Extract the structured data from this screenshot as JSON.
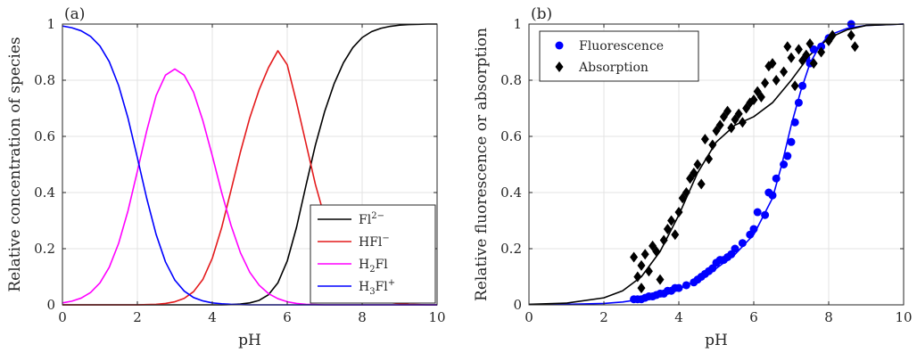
{
  "chart_data": [
    {
      "panel_label": "(a)",
      "type": "line",
      "xlabel": "pH",
      "ylabel": "Relative concentration of species",
      "xlim": [
        0,
        10
      ],
      "ylim": [
        0,
        1
      ],
      "xticks": [
        0,
        2,
        4,
        6,
        8,
        10
      ],
      "yticks": [
        0,
        0.2,
        0.4,
        0.6,
        0.8,
        1
      ],
      "grid": true,
      "legend_position": "bottom-right",
      "x": [
        0,
        0.25,
        0.5,
        0.75,
        1,
        1.25,
        1.5,
        1.75,
        2,
        2.25,
        2.5,
        2.75,
        3,
        3.25,
        3.5,
        3.75,
        4,
        4.25,
        4.5,
        4.75,
        5,
        5.25,
        5.5,
        5.75,
        6,
        6.25,
        6.5,
        6.75,
        7,
        7.25,
        7.5,
        7.75,
        8,
        8.25,
        8.5,
        8.75,
        9,
        9.25,
        9.5,
        9.75,
        10
      ],
      "series": [
        {
          "name": "Fl2-",
          "name_base": "Fl",
          "name_sup": "2−",
          "name_sub": "",
          "name_pre": "",
          "color": "#000000",
          "values": [
            0,
            0,
            0,
            0,
            0,
            0,
            0,
            0,
            0,
            0,
            0,
            0,
            0,
            0,
            0,
            0,
            0,
            0,
            0.001,
            0.003,
            0.007,
            0.016,
            0.036,
            0.078,
            0.156,
            0.277,
            0.425,
            0.568,
            0.689,
            0.787,
            0.862,
            0.916,
            0.952,
            0.973,
            0.985,
            0.992,
            0.996,
            0.998,
            0.999,
            1,
            1
          ]
        },
        {
          "name": "HFl-",
          "name_base": "HFl",
          "name_sup": "−",
          "name_sub": "",
          "name_pre": "",
          "color": "#e41a1c",
          "values": [
            0,
            0,
            0,
            0,
            0,
            0,
            0,
            0,
            0,
            0.001,
            0.002,
            0.005,
            0.011,
            0.023,
            0.047,
            0.091,
            0.166,
            0.275,
            0.408,
            0.544,
            0.666,
            0.766,
            0.845,
            0.905,
            0.855,
            0.72,
            0.575,
            0.43,
            0.311,
            0.213,
            0.138,
            0.084,
            0.048,
            0.027,
            0.015,
            0.008,
            0.004,
            0.002,
            0.001,
            0,
            0
          ]
        },
        {
          "name": "H2Fl",
          "name_base": "Fl",
          "name_pre": "H",
          "name_sub": "2",
          "name_sup": "",
          "color": "#ff00ff",
          "values": [
            0.007,
            0.013,
            0.024,
            0.044,
            0.078,
            0.134,
            0.219,
            0.335,
            0.476,
            0.62,
            0.745,
            0.818,
            0.84,
            0.818,
            0.757,
            0.655,
            0.531,
            0.4,
            0.283,
            0.186,
            0.116,
            0.07,
            0.04,
            0.022,
            0.011,
            0.005,
            0.002,
            0.001,
            0,
            0,
            0,
            0,
            0,
            0,
            0,
            0,
            0,
            0,
            0,
            0,
            0
          ]
        },
        {
          "name": "H3Fl+",
          "name_base": "Fl",
          "name_pre": "H",
          "name_sub": "3",
          "name_sup": "+",
          "color": "#0000ff",
          "values": [
            0.993,
            0.987,
            0.976,
            0.956,
            0.922,
            0.866,
            0.781,
            0.665,
            0.524,
            0.379,
            0.251,
            0.153,
            0.088,
            0.049,
            0.026,
            0.014,
            0.007,
            0.004,
            0.002,
            0.001,
            0,
            0,
            0,
            0,
            0,
            0,
            0,
            0,
            0,
            0,
            0,
            0,
            0,
            0,
            0,
            0,
            0,
            0,
            0,
            0,
            0
          ]
        }
      ]
    },
    {
      "panel_label": "(b)",
      "type": "scatter",
      "xlabel": "pH",
      "ylabel": "Relative fluorescence or absorption",
      "xlim": [
        0,
        10
      ],
      "ylim": [
        0,
        1
      ],
      "xticks": [
        0,
        2,
        4,
        6,
        8,
        10
      ],
      "yticks": [
        0,
        0.2,
        0.4,
        0.6,
        0.8,
        1
      ],
      "grid": true,
      "legend_position": "top-left",
      "series": [
        {
          "name": "Fluorescence",
          "marker": "circle",
          "color": "#0000ff",
          "points": [
            [
              2.8,
              0.02
            ],
            [
              2.9,
              0.02
            ],
            [
              3.0,
              0.02
            ],
            [
              3.1,
              0.025
            ],
            [
              3.2,
              0.03
            ],
            [
              3.3,
              0.03
            ],
            [
              3.4,
              0.035
            ],
            [
              3.5,
              0.04
            ],
            [
              3.6,
              0.04
            ],
            [
              3.7,
              0.05
            ],
            [
              3.8,
              0.05
            ],
            [
              3.9,
              0.06
            ],
            [
              4.0,
              0.06
            ],
            [
              4.2,
              0.07
            ],
            [
              4.4,
              0.08
            ],
            [
              4.5,
              0.09
            ],
            [
              4.6,
              0.1
            ],
            [
              4.7,
              0.11
            ],
            [
              4.8,
              0.12
            ],
            [
              4.9,
              0.13
            ],
            [
              5.0,
              0.15
            ],
            [
              5.1,
              0.16
            ],
            [
              5.2,
              0.16
            ],
            [
              5.3,
              0.17
            ],
            [
              5.4,
              0.18
            ],
            [
              5.5,
              0.2
            ],
            [
              5.7,
              0.22
            ],
            [
              5.9,
              0.25
            ],
            [
              6.0,
              0.27
            ],
            [
              6.1,
              0.33
            ],
            [
              6.3,
              0.32
            ],
            [
              6.4,
              0.4
            ],
            [
              6.5,
              0.39
            ],
            [
              6.6,
              0.45
            ],
            [
              6.8,
              0.5
            ],
            [
              6.9,
              0.53
            ],
            [
              7.0,
              0.58
            ],
            [
              7.1,
              0.65
            ],
            [
              7.2,
              0.72
            ],
            [
              7.3,
              0.78
            ],
            [
              7.4,
              0.88
            ],
            [
              7.5,
              0.86
            ],
            [
              7.6,
              0.91
            ],
            [
              7.8,
              0.92
            ],
            [
              8.0,
              0.95
            ],
            [
              8.6,
              1.0
            ]
          ],
          "fit": [
            [
              0,
              0.001
            ],
            [
              1,
              0.002
            ],
            [
              2,
              0.005
            ],
            [
              2.5,
              0.01
            ],
            [
              3,
              0.02
            ],
            [
              3.5,
              0.035
            ],
            [
              4,
              0.055
            ],
            [
              4.5,
              0.09
            ],
            [
              5,
              0.13
            ],
            [
              5.5,
              0.18
            ],
            [
              6,
              0.25
            ],
            [
              6.5,
              0.38
            ],
            [
              6.75,
              0.5
            ],
            [
              7,
              0.64
            ],
            [
              7.25,
              0.76
            ],
            [
              7.5,
              0.86
            ],
            [
              7.75,
              0.92
            ],
            [
              8,
              0.96
            ],
            [
              8.5,
              0.985
            ],
            [
              9,
              0.995
            ],
            [
              10,
              1
            ]
          ]
        },
        {
          "name": "Absorption",
          "marker": "diamond",
          "color": "#000000",
          "points": [
            [
              2.8,
              0.17
            ],
            [
              2.9,
              0.1
            ],
            [
              3.0,
              0.06
            ],
            [
              3.0,
              0.14
            ],
            [
              3.1,
              0.18
            ],
            [
              3.2,
              0.12
            ],
            [
              3.3,
              0.21
            ],
            [
              3.4,
              0.19
            ],
            [
              3.5,
              0.09
            ],
            [
              3.6,
              0.23
            ],
            [
              3.7,
              0.27
            ],
            [
              3.8,
              0.3
            ],
            [
              3.9,
              0.25
            ],
            [
              4.0,
              0.33
            ],
            [
              4.1,
              0.38
            ],
            [
              4.2,
              0.4
            ],
            [
              4.3,
              0.45
            ],
            [
              4.4,
              0.47
            ],
            [
              4.5,
              0.5
            ],
            [
              4.6,
              0.43
            ],
            [
              4.7,
              0.59
            ],
            [
              4.8,
              0.52
            ],
            [
              4.9,
              0.57
            ],
            [
              5.0,
              0.62
            ],
            [
              5.1,
              0.64
            ],
            [
              5.2,
              0.67
            ],
            [
              5.3,
              0.69
            ],
            [
              5.4,
              0.63
            ],
            [
              5.5,
              0.66
            ],
            [
              5.6,
              0.68
            ],
            [
              5.7,
              0.65
            ],
            [
              5.8,
              0.7
            ],
            [
              5.9,
              0.72
            ],
            [
              6.0,
              0.73
            ],
            [
              6.1,
              0.76
            ],
            [
              6.2,
              0.74
            ],
            [
              6.3,
              0.79
            ],
            [
              6.4,
              0.85
            ],
            [
              6.5,
              0.86
            ],
            [
              6.6,
              0.8
            ],
            [
              6.8,
              0.83
            ],
            [
              6.9,
              0.92
            ],
            [
              7.0,
              0.88
            ],
            [
              7.1,
              0.78
            ],
            [
              7.2,
              0.91
            ],
            [
              7.3,
              0.87
            ],
            [
              7.4,
              0.89
            ],
            [
              7.5,
              0.93
            ],
            [
              7.6,
              0.86
            ],
            [
              7.8,
              0.9
            ],
            [
              8.0,
              0.94
            ],
            [
              8.1,
              0.96
            ],
            [
              8.6,
              0.96
            ],
            [
              8.7,
              0.92
            ]
          ],
          "fit": [
            [
              0,
              0.002
            ],
            [
              1,
              0.006
            ],
            [
              2,
              0.025
            ],
            [
              2.5,
              0.05
            ],
            [
              3,
              0.1
            ],
            [
              3.5,
              0.19
            ],
            [
              4,
              0.32
            ],
            [
              4.5,
              0.47
            ],
            [
              5,
              0.58
            ],
            [
              5.5,
              0.64
            ],
            [
              6,
              0.67
            ],
            [
              6.5,
              0.72
            ],
            [
              7,
              0.8
            ],
            [
              7.5,
              0.89
            ],
            [
              8,
              0.95
            ],
            [
              8.5,
              0.98
            ],
            [
              9,
              0.995
            ],
            [
              10,
              1
            ]
          ]
        }
      ]
    }
  ]
}
